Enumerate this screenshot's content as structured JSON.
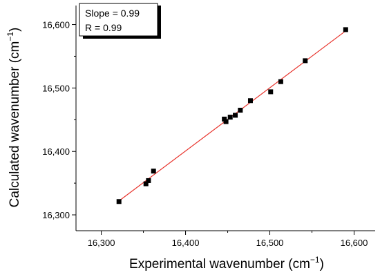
{
  "chart_data": {
    "type": "scatter",
    "xlabel": "Experimental wavenumber (cm",
    "ylabel": "Calculated wavenumber (cm",
    "axis_unit_exponent": "−1",
    "axis_label_close": ")",
    "xlim": [
      16270,
      16625
    ],
    "ylim": [
      16275,
      16630
    ],
    "xticks": [
      16300,
      16400,
      16500,
      16600
    ],
    "yticks": [
      16300,
      16400,
      16500,
      16600
    ],
    "xtick_labels": [
      "16,300",
      "16,400",
      "16,500",
      "16,600"
    ],
    "ytick_labels": [
      "16,300",
      "16,400",
      "16,500",
      "16,600"
    ],
    "grid": false,
    "legend_position": "top-left",
    "annotations": [
      "Slope = 0.99",
      "R = 0.99"
    ],
    "points": [
      {
        "x": 16321,
        "y": 16321
      },
      {
        "x": 16353,
        "y": 16349
      },
      {
        "x": 16356,
        "y": 16354
      },
      {
        "x": 16362,
        "y": 16369
      },
      {
        "x": 16446,
        "y": 16451
      },
      {
        "x": 16448,
        "y": 16447
      },
      {
        "x": 16453,
        "y": 16454
      },
      {
        "x": 16459,
        "y": 16457
      },
      {
        "x": 16465,
        "y": 16465
      },
      {
        "x": 16477,
        "y": 16480
      },
      {
        "x": 16501,
        "y": 16494
      },
      {
        "x": 16513,
        "y": 16510
      },
      {
        "x": 16542,
        "y": 16543
      },
      {
        "x": 16590,
        "y": 16592
      }
    ],
    "fit_line": {
      "x": [
        16321,
        16591
      ],
      "y": [
        16322,
        16591
      ]
    },
    "colors": {
      "points": "#000000",
      "fit_line": "#e8322b",
      "axes": "#000000"
    }
  }
}
